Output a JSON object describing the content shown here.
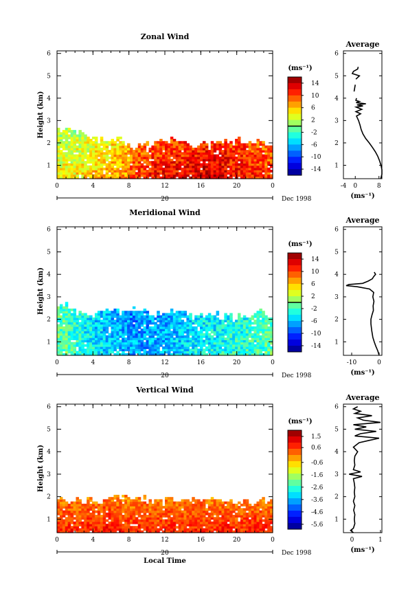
{
  "figure": {
    "date_label": "Dec 1998",
    "day_label": "20",
    "xlabel": "Local Time",
    "ylabel": "Height (km)",
    "x_ticks": [
      "0",
      "4",
      "8",
      "12",
      "16",
      "20",
      "0"
    ],
    "y_ticks": [
      "1",
      "2",
      "3",
      "4",
      "5",
      "6"
    ],
    "profile_title": "Average",
    "unit_label": "(ms⁻¹)"
  },
  "chart_data": [
    {
      "type": "heatmap",
      "title": "Zonal Wind",
      "xlabel": "",
      "ylabel": "Height (km)",
      "xlim": [
        0,
        24
      ],
      "ylim": [
        0.4,
        6
      ],
      "colorbar": {
        "label": "(ms⁻¹)",
        "range": [
          -16,
          16
        ],
        "ticks": [
          "14",
          "10",
          "6",
          "2",
          "-2",
          "-6",
          "-10",
          "-14"
        ],
        "tick_values": [
          14,
          10,
          6,
          2,
          -2,
          -6,
          -10,
          -14
        ],
        "zero_line": 0
      },
      "data_summary": {
        "base_height_km": 0.4,
        "top_height_km": [
          2.6,
          2.6,
          2.5,
          2.3,
          2.1,
          2.0,
          2.1,
          1.9,
          1.8,
          2.0,
          1.9,
          2.0,
          2.1,
          2.0,
          2.0,
          1.9,
          1.9,
          2.0,
          2.1,
          2.0,
          2.1,
          2.0,
          2.0,
          1.9
        ],
        "mean_value_by_hour": [
          3.5,
          3.5,
          4,
          4.5,
          5,
          5.5,
          6.5,
          7,
          9,
          10,
          11,
          11,
          11.5,
          11.5,
          12,
          12,
          12.5,
          12.5,
          12,
          11.5,
          11,
          10.5,
          10,
          9.5
        ]
      },
      "profile": {
        "title": "Average",
        "xlabel": "(ms⁻¹)",
        "xlim": [
          -4,
          9
        ],
        "x_ticks": [
          "-4",
          "0",
          "8"
        ],
        "x_tick_values": [
          -4,
          0,
          8
        ],
        "segments": [
          {
            "height": [
              0.4,
              0.6,
              0.8,
              1.0,
              1.2,
              1.4,
              1.6,
              1.8,
              2.0,
              2.2,
              2.4,
              2.6,
              2.8,
              3.0,
              3.2,
              3.3,
              3.4,
              3.5,
              3.6,
              3.65,
              3.7,
              3.75,
              3.8,
              3.85,
              3.9,
              4.0
            ],
            "value": [
              8.6,
              9.0,
              9.0,
              8.7,
              8.2,
              7.6,
              6.8,
              5.8,
              4.7,
              3.5,
              2.6,
              2.0,
              1.6,
              1.1,
              0.4,
              1.8,
              0.2,
              2.2,
              0.3,
              2.6,
              0.6,
              3.6,
              0.3,
              1.4,
              0.2,
              0.4
            ]
          },
          {
            "height": [
              4.3,
              4.6
            ],
            "value": [
              -0.4,
              0.0
            ]
          },
          {
            "height": [
              4.85,
              5.0,
              5.1,
              5.2,
              5.3,
              5.4
            ],
            "value": [
              0.2,
              1.4,
              -1.0,
              -0.6,
              0.8,
              1.0
            ]
          }
        ]
      }
    },
    {
      "type": "heatmap",
      "title": "Meridional Wind",
      "xlabel": "",
      "ylabel": "Height (km)",
      "xlim": [
        0,
        24
      ],
      "ylim": [
        0.4,
        6
      ],
      "colorbar": {
        "label": "(ms⁻¹)",
        "range": [
          -16,
          16
        ],
        "ticks": [
          "14",
          "10",
          "6",
          "2",
          "-2",
          "-6",
          "-10",
          "-14"
        ],
        "tick_values": [
          14,
          10,
          6,
          2,
          -2,
          -6,
          -10,
          -14
        ],
        "zero_line": 0
      },
      "data_summary": {
        "base_height_km": 0.4,
        "top_height_km": [
          2.6,
          2.4,
          2.3,
          2.2,
          2.3,
          2.4,
          2.3,
          2.4,
          2.5,
          2.3,
          2.2,
          2.3,
          2.4,
          2.3,
          2.2,
          2.1,
          2.1,
          2.2,
          2.1,
          2.1,
          2.2,
          2.2,
          2.3,
          2.1
        ],
        "mean_value_by_hour": [
          -1,
          -2,
          -3,
          -4,
          -5,
          -5.5,
          -6,
          -6.5,
          -7,
          -7,
          -6.5,
          -6.5,
          -6,
          -5.5,
          -5,
          -4.5,
          -4,
          -4,
          -3.5,
          -3,
          -3,
          -2.5,
          -2,
          -1.5
        ]
      },
      "profile": {
        "title": "Average",
        "xlabel": "(ms⁻¹)",
        "xlim": [
          -13,
          1
        ],
        "x_ticks": [
          "-10",
          "0"
        ],
        "x_tick_values": [
          -10,
          0
        ],
        "segments": [
          {
            "height": [
              0.4,
              0.6,
              0.8,
              1.0,
              1.2,
              1.5,
              1.8,
              2.0,
              2.2,
              2.4,
              2.6,
              2.8,
              3.0,
              3.2,
              3.35,
              3.45,
              3.5,
              3.55,
              3.6,
              3.7,
              3.8,
              3.9,
              4.0,
              4.1
            ],
            "value": [
              0.0,
              -0.5,
              -1.2,
              -1.8,
              -2.3,
              -2.7,
              -3.0,
              -3.0,
              -2.6,
              -2.1,
              -2.2,
              -1.9,
              -2.3,
              -2.0,
              -3.5,
              -8.0,
              -12.0,
              -11.0,
              -6.0,
              -4.0,
              -2.5,
              -2.0,
              -1.3,
              -1.8
            ]
          }
        ]
      }
    },
    {
      "type": "heatmap",
      "title": "Vertical Wind",
      "xlabel": "Local Time",
      "ylabel": "Height (km)",
      "xlim": [
        0,
        24
      ],
      "ylim": [
        0.4,
        6
      ],
      "colorbar": {
        "label": "(ms⁻¹)",
        "range": [
          -6,
          2
        ],
        "ticks": [
          "1.5",
          "0.6",
          "-0.6",
          "-1.6",
          "-2.6",
          "-3.6",
          "-4.6",
          "-5.6"
        ],
        "tick_values": [
          1.5,
          0.6,
          -0.6,
          -1.6,
          -2.6,
          -3.6,
          -4.6,
          -5.6
        ],
        "zero_line": null
      },
      "data_summary": {
        "base_height_km": 0.4,
        "top_height_km": [
          1.8,
          1.8,
          1.8,
          1.8,
          1.8,
          1.9,
          2.0,
          2.1,
          2.0,
          1.9,
          1.8,
          1.8,
          1.9,
          1.8,
          1.8,
          1.8,
          1.8,
          1.9,
          1.8,
          1.8,
          1.8,
          1.7,
          1.8,
          1.8
        ],
        "mean_value_by_hour": [
          0.4,
          0.5,
          0.4,
          0.5,
          0.4,
          0.6,
          0.5,
          0.4,
          0.4,
          0.5,
          0.4,
          0.4,
          0.5,
          0.4,
          0.4,
          0.5,
          0.4,
          0.4,
          0.5,
          0.4,
          0.4,
          0.5,
          0.4,
          0.4
        ]
      },
      "profile": {
        "title": "Average",
        "xlabel": "(ms⁻¹)",
        "xlim": [
          -0.3,
          1.05
        ],
        "x_ticks": [
          "0",
          "1"
        ],
        "x_tick_values": [
          0,
          1
        ],
        "segments": [
          {
            "height": [
              0.4,
              0.5,
              0.6,
              0.8,
              1.0,
              1.2,
              1.4,
              1.6,
              1.8,
              2.0,
              2.2,
              2.4,
              2.6,
              2.8,
              2.9,
              3.0,
              3.1,
              3.2,
              3.4,
              3.6,
              3.8,
              4.0,
              4.2,
              4.4,
              4.5,
              4.6,
              4.7,
              4.8,
              4.9,
              5.0,
              5.1,
              5.2,
              5.3,
              5.4,
              5.5,
              5.6,
              5.7,
              5.8,
              5.9,
              6.0
            ],
            "value": [
              0.05,
              -0.05,
              0.05,
              0.1,
              0.08,
              0.1,
              0.06,
              0.1,
              0.05,
              0.1,
              0.08,
              0.1,
              0.08,
              0.05,
              0.35,
              -0.1,
              0.3,
              0.05,
              0.1,
              0.08,
              0.1,
              0.2,
              0.05,
              0.25,
              0.6,
              0.95,
              0.1,
              0.3,
              0.85,
              0.1,
              0.5,
              0.05,
              1.0,
              0.4,
              0.2,
              0.7,
              0.1,
              0.3,
              0.05,
              0.2
            ]
          }
        ]
      }
    }
  ]
}
